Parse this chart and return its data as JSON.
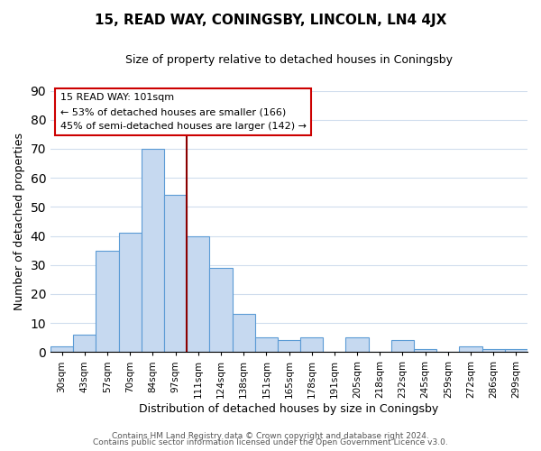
{
  "title": "15, READ WAY, CONINGSBY, LINCOLN, LN4 4JX",
  "subtitle": "Size of property relative to detached houses in Coningsby",
  "xlabel": "Distribution of detached houses by size in Coningsby",
  "ylabel": "Number of detached properties",
  "bar_labels": [
    "30sqm",
    "43sqm",
    "57sqm",
    "70sqm",
    "84sqm",
    "97sqm",
    "111sqm",
    "124sqm",
    "138sqm",
    "151sqm",
    "165sqm",
    "178sqm",
    "191sqm",
    "205sqm",
    "218sqm",
    "232sqm",
    "245sqm",
    "259sqm",
    "272sqm",
    "286sqm",
    "299sqm"
  ],
  "bar_values": [
    2,
    6,
    35,
    41,
    70,
    54,
    40,
    29,
    13,
    5,
    4,
    5,
    0,
    5,
    0,
    4,
    1,
    0,
    2,
    1,
    1
  ],
  "bar_color": "#c6d9f0",
  "bar_edge_color": "#5b9bd5",
  "ylim": [
    0,
    90
  ],
  "yticks": [
    0,
    10,
    20,
    30,
    40,
    50,
    60,
    70,
    80,
    90
  ],
  "property_line_color": "#8b0000",
  "annotation_title": "15 READ WAY: 101sqm",
  "annotation_line1": "← 53% of detached houses are smaller (166)",
  "annotation_line2": "45% of semi-detached houses are larger (142) →",
  "footer_line1": "Contains HM Land Registry data © Crown copyright and database right 2024.",
  "footer_line2": "Contains public sector information licensed under the Open Government Licence v3.0.",
  "background_color": "#ffffff",
  "grid_color": "#d0dded"
}
